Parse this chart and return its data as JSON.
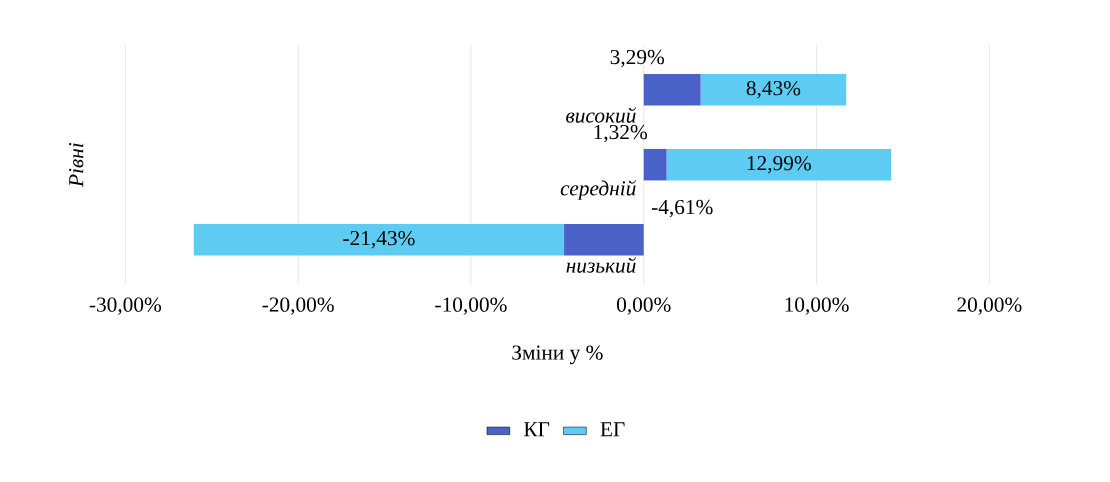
{
  "chart_data": {
    "type": "bar",
    "orientation": "horizontal",
    "stacked": true,
    "categories": [
      "високий",
      "середній",
      "низький"
    ],
    "series": [
      {
        "name": "КГ",
        "color": "#4a62c8",
        "values": [
          3.29,
          1.32,
          -4.61
        ],
        "value_labels": [
          "3,29%",
          "1,32%",
          "-4,61%"
        ]
      },
      {
        "name": "ЕГ",
        "color": "#5ecbf2",
        "values": [
          8.43,
          12.99,
          -21.43
        ],
        "value_labels": [
          "8,43%",
          "12,99%",
          "-21,43%"
        ]
      }
    ],
    "xlim": [
      -30,
      20
    ],
    "xticks": [
      {
        "value": -30,
        "label": "-30,00%"
      },
      {
        "value": -20,
        "label": "-20,00%"
      },
      {
        "value": -10,
        "label": "-10,00%"
      },
      {
        "value": 0,
        "label": "0,00%"
      },
      {
        "value": 10,
        "label": "10,00%"
      },
      {
        "value": 20,
        "label": "20,00%"
      }
    ],
    "xlabel": "Зміни у %",
    "ylabel": "Рівні",
    "grid": "x",
    "legend": "bottom"
  }
}
